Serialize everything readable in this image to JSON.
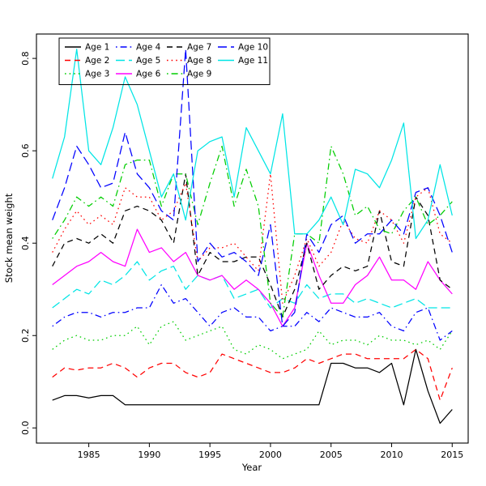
{
  "figure": {
    "background": "#ffffff"
  },
  "chart_data": {
    "type": "line",
    "title": "",
    "xlabel": "Year",
    "ylabel": "Stock mean weight",
    "grid": false,
    "legend_position": "top-left-inside",
    "legend_columns": 4,
    "legend_rows": 3,
    "xlim": [
      1982,
      2015
    ],
    "ylim": [
      0,
      0.82
    ],
    "xticks": [
      1985,
      1990,
      1995,
      2000,
      2005,
      2010,
      2015
    ],
    "xtick_labels": [
      "1985",
      "1990",
      "1995",
      "2000",
      "2005",
      "2010",
      "2015"
    ],
    "yticks": [
      0.0,
      0.2,
      0.4,
      0.6,
      0.8
    ],
    "ytick_labels": [
      "0.0",
      "0.2",
      "0.4",
      "0.6",
      "0.8"
    ],
    "x": [
      1982,
      1983,
      1984,
      1985,
      1986,
      1987,
      1988,
      1989,
      1990,
      1991,
      1992,
      1993,
      1994,
      1995,
      1996,
      1997,
      1998,
      1999,
      2000,
      2001,
      2002,
      2003,
      2004,
      2005,
      2006,
      2007,
      2008,
      2009,
      2010,
      2011,
      2012,
      2013,
      2014,
      2015
    ],
    "series": [
      {
        "name": "Age 1",
        "color": "#000000",
        "linestyle": "solid",
        "values": [
          0.06,
          0.07,
          0.07,
          0.065,
          0.07,
          0.07,
          0.05,
          0.05,
          0.05,
          0.05,
          0.05,
          0.05,
          0.05,
          0.05,
          0.05,
          0.05,
          0.05,
          0.05,
          0.05,
          0.05,
          0.05,
          0.05,
          0.05,
          0.14,
          0.14,
          0.13,
          0.13,
          0.12,
          0.14,
          0.05,
          0.17,
          0.08,
          0.01,
          0.04
        ]
      },
      {
        "name": "Age 2",
        "color": "#FF0000",
        "linestyle": "dashed",
        "values": [
          0.11,
          0.13,
          0.125,
          0.13,
          0.13,
          0.14,
          0.13,
          0.11,
          0.13,
          0.14,
          0.14,
          0.12,
          0.11,
          0.12,
          0.16,
          0.15,
          0.14,
          0.13,
          0.12,
          0.12,
          0.13,
          0.15,
          0.14,
          0.15,
          0.16,
          0.16,
          0.15,
          0.15,
          0.15,
          0.15,
          0.17,
          0.15,
          0.06,
          0.13
        ]
      },
      {
        "name": "Age 3",
        "color": "#00CD00",
        "linestyle": "dotted",
        "values": [
          0.17,
          0.19,
          0.2,
          0.19,
          0.19,
          0.2,
          0.2,
          0.22,
          0.18,
          0.22,
          0.23,
          0.19,
          0.2,
          0.21,
          0.22,
          0.17,
          0.16,
          0.18,
          0.17,
          0.15,
          0.16,
          0.17,
          0.21,
          0.18,
          0.19,
          0.19,
          0.18,
          0.2,
          0.19,
          0.19,
          0.18,
          0.19,
          0.17,
          0.21
        ]
      },
      {
        "name": "Age 4",
        "color": "#0000FF",
        "linestyle": "dashdot",
        "values": [
          0.22,
          0.24,
          0.25,
          0.25,
          0.24,
          0.25,
          0.25,
          0.26,
          0.26,
          0.31,
          0.27,
          0.28,
          0.25,
          0.22,
          0.25,
          0.26,
          0.24,
          0.24,
          0.21,
          0.22,
          0.22,
          0.25,
          0.23,
          0.26,
          0.25,
          0.24,
          0.24,
          0.25,
          0.22,
          0.21,
          0.25,
          0.26,
          0.19,
          0.21
        ]
      },
      {
        "name": "Age 5",
        "color": "#00E5E5",
        "linestyle": "longdash",
        "values": [
          0.26,
          0.28,
          0.3,
          0.29,
          0.32,
          0.31,
          0.33,
          0.36,
          0.32,
          0.34,
          0.35,
          0.3,
          0.33,
          0.32,
          0.33,
          0.28,
          0.29,
          0.3,
          0.26,
          0.28,
          0.27,
          0.31,
          0.28,
          0.29,
          0.29,
          0.27,
          0.28,
          0.27,
          0.26,
          0.27,
          0.28,
          0.26,
          0.26,
          0.26
        ]
      },
      {
        "name": "Age 6",
        "color": "#FF00FF",
        "linestyle": "solid",
        "values": [
          0.31,
          0.33,
          0.35,
          0.36,
          0.38,
          0.36,
          0.35,
          0.43,
          0.38,
          0.39,
          0.36,
          0.38,
          0.33,
          0.32,
          0.33,
          0.3,
          0.32,
          0.3,
          0.27,
          0.22,
          0.26,
          0.4,
          0.33,
          0.27,
          0.27,
          0.31,
          0.33,
          0.37,
          0.32,
          0.32,
          0.3,
          0.36,
          0.32,
          0.29
        ]
      },
      {
        "name": "Age 7",
        "color": "#000000",
        "linestyle": "dashed",
        "values": [
          0.35,
          0.4,
          0.41,
          0.4,
          0.42,
          0.4,
          0.47,
          0.48,
          0.47,
          0.45,
          0.4,
          0.55,
          0.33,
          0.38,
          0.36,
          0.36,
          0.37,
          0.37,
          0.31,
          0.24,
          0.3,
          0.4,
          0.3,
          0.33,
          0.35,
          0.34,
          0.35,
          0.47,
          0.36,
          0.35,
          0.5,
          0.46,
          0.32,
          0.3
        ]
      },
      {
        "name": "Age 8",
        "color": "#FF0000",
        "linestyle": "dotted",
        "values": [
          0.38,
          0.43,
          0.47,
          0.44,
          0.46,
          0.44,
          0.52,
          0.5,
          0.5,
          0.45,
          0.47,
          0.53,
          0.36,
          0.39,
          0.39,
          0.4,
          0.37,
          0.34,
          0.55,
          0.27,
          0.33,
          0.41,
          0.35,
          0.38,
          0.45,
          0.41,
          0.4,
          0.47,
          0.45,
          0.4,
          0.5,
          0.52,
          0.42,
          0.4
        ]
      },
      {
        "name": "Age 9",
        "color": "#00CD00",
        "linestyle": "dashdot",
        "values": [
          0.41,
          0.45,
          0.5,
          0.48,
          0.5,
          0.48,
          0.57,
          0.58,
          0.58,
          0.48,
          0.55,
          0.55,
          0.44,
          0.53,
          0.61,
          0.48,
          0.56,
          0.48,
          0.27,
          0.24,
          0.42,
          0.42,
          0.4,
          0.61,
          0.55,
          0.46,
          0.48,
          0.43,
          0.42,
          0.47,
          0.5,
          0.44,
          0.46,
          0.49
        ]
      },
      {
        "name": "Age 10",
        "color": "#0000FF",
        "linestyle": "longdash",
        "values": [
          0.45,
          0.52,
          0.61,
          0.57,
          0.52,
          0.53,
          0.64,
          0.55,
          0.52,
          0.47,
          0.45,
          0.82,
          0.36,
          0.4,
          0.37,
          0.38,
          0.36,
          0.33,
          0.44,
          0.22,
          0.25,
          0.42,
          0.38,
          0.44,
          0.46,
          0.4,
          0.42,
          0.42,
          0.45,
          0.42,
          0.51,
          0.52,
          0.46,
          0.38
        ]
      },
      {
        "name": "Age 11",
        "color": "#00E5E5",
        "linestyle": "solid",
        "values": [
          0.54,
          0.63,
          0.82,
          0.6,
          0.57,
          0.65,
          0.76,
          0.7,
          0.6,
          0.5,
          0.55,
          0.45,
          0.6,
          0.62,
          0.63,
          0.5,
          0.65,
          0.6,
          0.55,
          0.68,
          0.42,
          0.42,
          0.45,
          0.5,
          0.44,
          0.56,
          0.55,
          0.52,
          0.58,
          0.66,
          0.41,
          0.45,
          0.57,
          0.46
        ]
      }
    ]
  }
}
